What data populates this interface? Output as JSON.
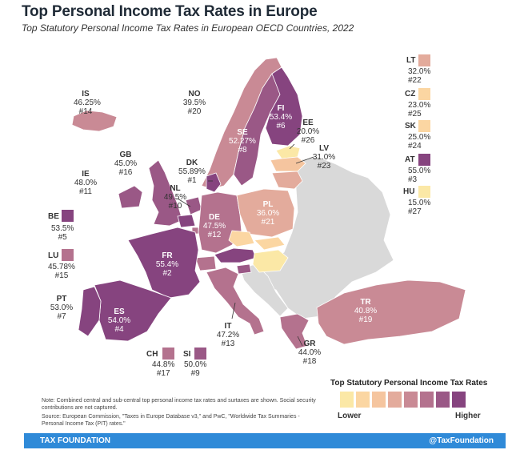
{
  "header": {
    "title": "Top Personal Income Tax Rates in Europe",
    "subtitle": "Top Statutory Personal Income Tax Rates in European OECD Countries, 2022"
  },
  "colors": {
    "background_country": "#d9d9d9",
    "scale": [
      "#fbe8a6",
      "#fbd6a2",
      "#f5c59f",
      "#e3ab9c",
      "#c98a95",
      "#b4728e",
      "#9a5886",
      "#86447f"
    ],
    "footer_bar": "#2f8ad8"
  },
  "countries": [
    {
      "code": "IS",
      "rate": "46.25%",
      "rank": "#14"
    },
    {
      "code": "NO",
      "rate": "39.5%",
      "rank": "#20"
    },
    {
      "code": "FI",
      "rate": "53.4%",
      "rank": "#6"
    },
    {
      "code": "SE",
      "rate": "52.27%",
      "rank": "#8"
    },
    {
      "code": "EE",
      "rate": "20.0%",
      "rank": "#26"
    },
    {
      "code": "LV",
      "rate": "31.0%",
      "rank": "#23"
    },
    {
      "code": "GB",
      "rate": "45.0%",
      "rank": "#16"
    },
    {
      "code": "DK",
      "rate": "55.89%",
      "rank": "#1"
    },
    {
      "code": "IE",
      "rate": "48.0%",
      "rank": "#11"
    },
    {
      "code": "NL",
      "rate": "49.5%",
      "rank": "#10"
    },
    {
      "code": "DE",
      "rate": "47.5%",
      "rank": "#12"
    },
    {
      "code": "PL",
      "rate": "36.0%",
      "rank": "#21"
    },
    {
      "code": "FR",
      "rate": "55.4%",
      "rank": "#2"
    },
    {
      "code": "PT",
      "rate": "53.0%",
      "rank": "#7"
    },
    {
      "code": "ES",
      "rate": "54.0%",
      "rank": "#4"
    },
    {
      "code": "IT",
      "rate": "47.2%",
      "rank": "#13"
    },
    {
      "code": "TR",
      "rate": "40.8%",
      "rank": "#19"
    },
    {
      "code": "GR",
      "rate": "44.0%",
      "rank": "#18"
    }
  ],
  "side_countries": [
    {
      "code": "LT",
      "rate": "32.0%",
      "rank": "#22"
    },
    {
      "code": "CZ",
      "rate": "23.0%",
      "rank": "#25"
    },
    {
      "code": "SK",
      "rate": "25.0%",
      "rank": "#24"
    },
    {
      "code": "AT",
      "rate": "55.0%",
      "rank": "#3"
    },
    {
      "code": "HU",
      "rate": "15.0%",
      "rank": "#27"
    },
    {
      "code": "BE",
      "rate": "53.5%",
      "rank": "#5"
    },
    {
      "code": "LU",
      "rate": "45.78%",
      "rank": "#15"
    },
    {
      "code": "CH",
      "rate": "44.8%",
      "rank": "#17"
    },
    {
      "code": "SI",
      "rate": "50.0%",
      "rank": "#9"
    }
  ],
  "legend": {
    "title": "Top Statutory Personal Income Tax Rates",
    "low": "Lower",
    "high": "Higher"
  },
  "notes": {
    "note": "Note: Combined central and sub-central top personal income tax rates and surtaxes are shown. Social security contributions are not captured.",
    "source": "Source: European Commission, \"Taxes in Europe Database v3,\" and PwC, \"Worldwide Tax Summaries - Personal Income Tax (PIT) rates.\""
  },
  "footer": {
    "left": "TAX FOUNDATION",
    "right": "@TaxFoundation"
  }
}
